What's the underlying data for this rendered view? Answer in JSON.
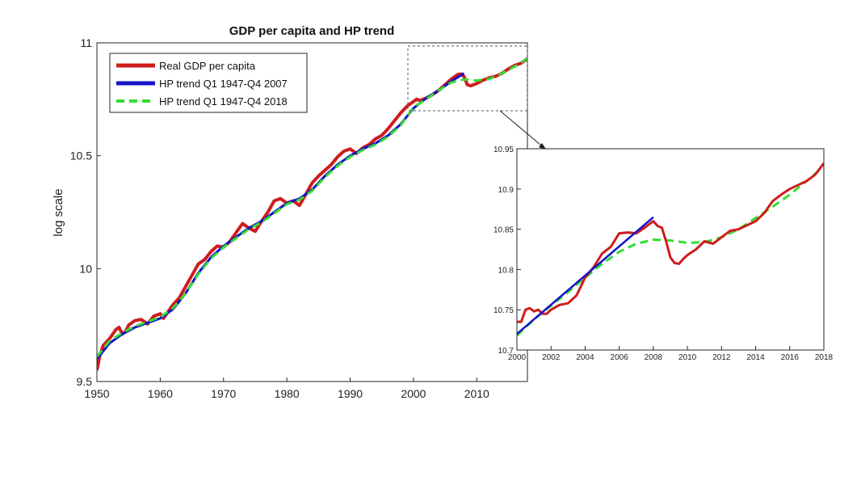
{
  "chart_data": [
    {
      "type": "line",
      "title": "GDP per capita and HP trend",
      "xlabel": "",
      "ylabel": "log scale",
      "xlim": [
        1950,
        2018
      ],
      "ylim": [
        9.5,
        11.0
      ],
      "x_ticks": [
        "1950",
        "1960",
        "1970",
        "1980",
        "1990",
        "2000",
        "2010"
      ],
      "y_ticks": [
        "9.5",
        "10",
        "10.5",
        "11"
      ],
      "legend": [
        "Real GDP per capita",
        "HP trend Q1 1947-Q4 2007",
        "HP trend Q1 1947-Q4 2018"
      ],
      "legend_position": "top-left",
      "colors": {
        "gdp": "#d01c1c",
        "trend2007": "#1414c8",
        "trend2018": "#33dd33"
      },
      "series": [
        {
          "name": "Real GDP per capita",
          "x": [
            1950,
            1950.5,
            1951,
            1952,
            1953,
            1953.5,
            1954,
            1954.5,
            1955,
            1956,
            1957,
            1958,
            1959,
            1960,
            1960.5,
            1961,
            1962,
            1963,
            1964,
            1965,
            1966,
            1967,
            1968,
            1969,
            1970,
            1971,
            1972,
            1973,
            1974,
            1975,
            1976,
            1977,
            1978,
            1979,
            1980,
            1981,
            1982,
            1983,
            1984,
            1985,
            1986,
            1987,
            1988,
            1989,
            1990,
            1991,
            1992,
            1993,
            1994,
            1995,
            1996,
            1997,
            1998,
            1999,
            2000,
            2000.5,
            2001,
            2002,
            2003,
            2004,
            2005,
            2006,
            2007,
            2007.5,
            2008,
            2008.5,
            2009,
            2009.5,
            2010,
            2011,
            2012,
            2013,
            2014,
            2015,
            2016,
            2017,
            2018
          ],
          "values": [
            9.55,
            9.62,
            9.66,
            9.69,
            9.73,
            9.74,
            9.71,
            9.72,
            9.75,
            9.77,
            9.775,
            9.755,
            9.79,
            9.8,
            9.78,
            9.8,
            9.84,
            9.87,
            9.92,
            9.97,
            10.02,
            10.04,
            10.075,
            10.1,
            10.095,
            10.12,
            10.16,
            10.2,
            10.18,
            10.165,
            10.21,
            10.25,
            10.3,
            10.31,
            10.29,
            10.3,
            10.28,
            10.33,
            10.38,
            10.41,
            10.435,
            10.46,
            10.495,
            10.52,
            10.53,
            10.51,
            10.535,
            10.55,
            10.575,
            10.59,
            10.62,
            10.655,
            10.69,
            10.72,
            10.74,
            10.75,
            10.745,
            10.755,
            10.77,
            10.79,
            10.815,
            10.84,
            10.86,
            10.862,
            10.85,
            10.815,
            10.81,
            10.815,
            10.82,
            10.835,
            10.845,
            10.852,
            10.865,
            10.885,
            10.9,
            10.91,
            10.93
          ]
        },
        {
          "name": "HP trend Q1 1947-Q4 2007",
          "x": [
            1950,
            1952,
            1954,
            1956,
            1958,
            1960,
            1962,
            1964,
            1966,
            1968,
            1970,
            1972,
            1974,
            1976,
            1978,
            1980,
            1982,
            1984,
            1986,
            1988,
            1990,
            1992,
            1994,
            1996,
            1998,
            2000,
            2002,
            2004,
            2006,
            2008
          ],
          "values": [
            9.6,
            9.67,
            9.71,
            9.74,
            9.76,
            9.78,
            9.82,
            9.89,
            9.98,
            10.05,
            10.1,
            10.14,
            10.18,
            10.21,
            10.25,
            10.29,
            10.31,
            10.35,
            10.41,
            10.46,
            10.5,
            10.53,
            10.555,
            10.59,
            10.64,
            10.71,
            10.755,
            10.79,
            10.83,
            10.865
          ]
        },
        {
          "name": "HP trend Q1 1947-Q4 2018",
          "x": [
            1950,
            1952,
            1954,
            1956,
            1958,
            1960,
            1962,
            1964,
            1966,
            1968,
            1970,
            1972,
            1974,
            1976,
            1978,
            1980,
            1982,
            1984,
            1986,
            1988,
            1990,
            1992,
            1994,
            1996,
            1998,
            2000,
            2002,
            2004,
            2006,
            2008,
            2010,
            2012,
            2014,
            2016,
            2018
          ],
          "values": [
            9.61,
            9.68,
            9.715,
            9.745,
            9.765,
            9.785,
            9.825,
            9.89,
            9.975,
            10.045,
            10.095,
            10.135,
            10.175,
            10.205,
            10.245,
            10.285,
            10.305,
            10.345,
            10.405,
            10.455,
            10.495,
            10.525,
            10.55,
            10.585,
            10.635,
            10.715,
            10.75,
            10.79,
            10.825,
            10.838,
            10.833,
            10.84,
            10.865,
            10.895,
            10.93
          ]
        }
      ]
    },
    {
      "type": "line",
      "title": "",
      "xlabel": "",
      "ylabel": "",
      "xlim": [
        2000,
        2018
      ],
      "ylim": [
        10.7,
        10.95
      ],
      "x_ticks": [
        "2000",
        "2002",
        "2004",
        "2006",
        "2008",
        "2010",
        "2012",
        "2014",
        "2016",
        "2018"
      ],
      "y_ticks": [
        "10.7",
        "10.75",
        "10.8",
        "10.85",
        "10.9",
        "10.95"
      ],
      "legend": [],
      "series": [
        {
          "name": "Real GDP per capita",
          "x": [
            2000,
            2000.25,
            2000.5,
            2000.75,
            2001,
            2001.25,
            2001.5,
            2001.75,
            2002,
            2002.5,
            2003,
            2003.5,
            2004,
            2004.5,
            2005,
            2005.5,
            2006,
            2006.5,
            2007,
            2007.5,
            2008,
            2008.25,
            2008.5,
            2008.75,
            2009,
            2009.25,
            2009.5,
            2009.75,
            2010,
            2010.5,
            2011,
            2011.5,
            2012,
            2012.5,
            2013,
            2013.5,
            2014,
            2014.5,
            2015,
            2015.5,
            2016,
            2016.5,
            2017,
            2017.5,
            2018
          ],
          "values": [
            10.735,
            10.735,
            10.75,
            10.752,
            10.748,
            10.75,
            10.745,
            10.745,
            10.75,
            10.756,
            10.758,
            10.768,
            10.79,
            10.803,
            10.82,
            10.828,
            10.845,
            10.846,
            10.845,
            10.852,
            10.86,
            10.854,
            10.852,
            10.835,
            10.815,
            10.808,
            10.807,
            10.813,
            10.818,
            10.825,
            10.835,
            10.832,
            10.84,
            10.848,
            10.85,
            10.855,
            10.86,
            10.87,
            10.885,
            10.893,
            10.9,
            10.905,
            10.91,
            10.918,
            10.932
          ]
        },
        {
          "name": "HP trend Q1 1947-Q4 2007",
          "x": [
            2000,
            2008
          ],
          "values": [
            10.72,
            10.865
          ]
        },
        {
          "name": "HP trend Q1 1947-Q4 2018",
          "x": [
            2000,
            2001,
            2002,
            2003,
            2004,
            2005,
            2006,
            2007,
            2008,
            2009,
            2010,
            2011,
            2012,
            2013,
            2014,
            2015,
            2016,
            2017,
            2018
          ],
          "values": [
            10.718,
            10.738,
            10.755,
            10.772,
            10.79,
            10.807,
            10.822,
            10.832,
            10.837,
            10.836,
            10.833,
            10.834,
            10.84,
            10.85,
            10.864,
            10.878,
            10.893,
            10.91,
            10.928
          ]
        }
      ]
    }
  ]
}
